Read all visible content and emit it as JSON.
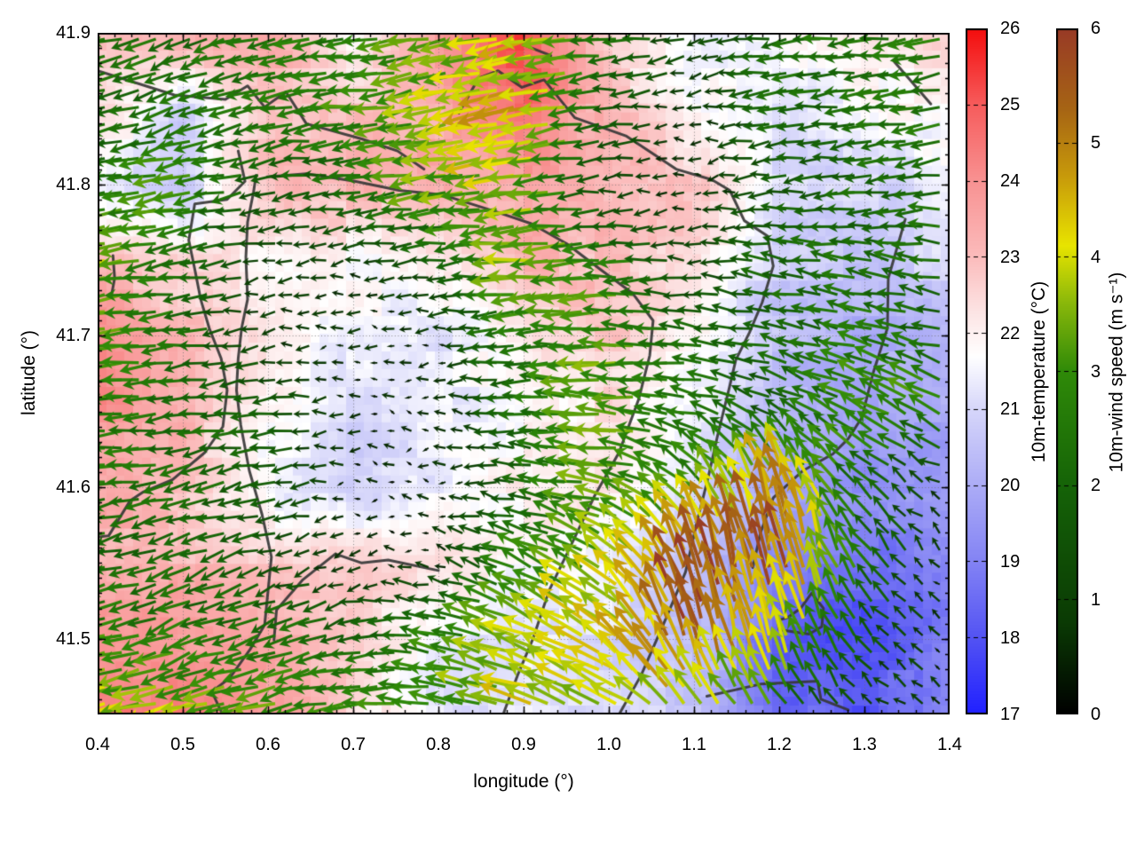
{
  "axes": {
    "xlabel": "longitude (°)",
    "ylabel": "latitude (°)",
    "xlim": [
      0.4,
      1.4
    ],
    "ylim": [
      41.45,
      41.9
    ],
    "xticks": {
      "values": [
        0.4,
        0.5,
        0.6,
        0.7,
        0.8,
        0.9,
        1.0,
        1.1,
        1.2,
        1.3,
        1.4
      ],
      "labels": [
        "0.4",
        "0.5",
        "0.6",
        "0.7",
        "0.8",
        "0.9",
        "1.0",
        "1.1",
        "1.2",
        "1.3",
        "1.4"
      ]
    },
    "yticks": {
      "values": [
        41.5,
        41.6,
        41.7,
        41.8,
        41.9
      ],
      "labels": [
        "41.5",
        "41.6",
        "41.7",
        "41.8",
        "41.9"
      ]
    },
    "grid": "dotted"
  },
  "colorbars": [
    {
      "id": "temperature",
      "label": "10m-temperature (°C)",
      "min": 17,
      "max": 26,
      "ticks": {
        "values": [
          17,
          18,
          19,
          20,
          21,
          22,
          23,
          24,
          25,
          26
        ],
        "labels": [
          "17",
          "18",
          "19",
          "20",
          "21",
          "22",
          "23",
          "24",
          "25",
          "26"
        ]
      },
      "stops": [
        [
          17,
          "#2020ff"
        ],
        [
          18,
          "#5353f3"
        ],
        [
          19,
          "#8383f4"
        ],
        [
          20,
          "#acacf6"
        ],
        [
          21,
          "#d6d6fa"
        ],
        [
          21.7,
          "#ffffff"
        ],
        [
          22.3,
          "#fce3e3"
        ],
        [
          23,
          "#fbbcbc"
        ],
        [
          24,
          "#f89292"
        ],
        [
          25,
          "#f65c5c"
        ],
        [
          26,
          "#f40d0d"
        ]
      ]
    },
    {
      "id": "wind",
      "label": "10m-wind speed (m s⁻¹)",
      "min": 0,
      "max": 6,
      "ticks": {
        "values": [
          0,
          1,
          2,
          3,
          4,
          5,
          6
        ],
        "labels": [
          "0",
          "1",
          "2",
          "3",
          "4",
          "5",
          "6"
        ]
      },
      "stops": [
        [
          0,
          "#000000"
        ],
        [
          0.8,
          "#0a3a04"
        ],
        [
          2,
          "#156307"
        ],
        [
          3,
          "#2f8a08"
        ],
        [
          3.6,
          "#8ab80a"
        ],
        [
          4.1,
          "#e8e400"
        ],
        [
          4.7,
          "#c89b0a"
        ],
        [
          5.3,
          "#a66414"
        ],
        [
          6,
          "#983a26"
        ]
      ]
    }
  ],
  "chart_data": {
    "type": "heatmap",
    "title": "",
    "xlabel": "longitude (°)",
    "ylabel": "latitude (°)",
    "x_range": [
      0.4,
      1.4
    ],
    "y_range": [
      41.45,
      41.9
    ],
    "fields": "10m temperature (shaded, °C) with 10m wind vectors colored by speed (m s⁻¹) and map boundary contours",
    "grid_lons": [
      0.4,
      0.5,
      0.6,
      0.7,
      0.8,
      0.9,
      1.0,
      1.1,
      1.2,
      1.3,
      1.4
    ],
    "grid_lats": [
      41.9,
      41.85,
      41.8,
      41.75,
      41.7,
      41.65,
      41.6,
      41.55,
      41.5,
      41.45
    ],
    "temperature_c": [
      [
        23.2,
        23.3,
        23.5,
        21.5,
        23.8,
        25.5,
        22.3,
        21.5,
        21.6,
        22.2,
        22.4
      ],
      [
        22.5,
        21.0,
        23.2,
        23.0,
        23.5,
        24.8,
        23.0,
        21.8,
        21.2,
        21.6,
        22.0
      ],
      [
        21.5,
        20.8,
        23.0,
        23.2,
        23.3,
        23.5,
        23.2,
        22.8,
        21.0,
        20.9,
        21.2
      ],
      [
        23.0,
        22.5,
        22.0,
        21.8,
        22.0,
        23.3,
        23.0,
        22.5,
        20.8,
        20.6,
        20.9
      ],
      [
        24.2,
        23.0,
        22.3,
        21.5,
        21.3,
        22.0,
        22.8,
        22.0,
        20.5,
        20.0,
        20.3
      ],
      [
        24.0,
        23.2,
        21.8,
        21.0,
        21.3,
        21.8,
        22.3,
        21.5,
        20.3,
        19.8,
        20.0
      ],
      [
        23.3,
        23.0,
        21.5,
        20.8,
        21.5,
        22.0,
        22.3,
        21.0,
        19.8,
        19.3,
        19.5
      ],
      [
        23.5,
        23.2,
        22.8,
        22.5,
        22.3,
        21.8,
        21.5,
        20.5,
        19.0,
        18.5,
        19.2
      ],
      [
        24.2,
        23.8,
        23.5,
        22.8,
        21.5,
        21.3,
        21.0,
        20.5,
        18.3,
        17.8,
        19.0
      ],
      [
        24.5,
        24.5,
        23.8,
        22.5,
        21.3,
        21.2,
        21.0,
        20.8,
        18.5,
        18.0,
        19.3
      ]
    ],
    "wind_u_ms": [
      [
        -2.5,
        -2.0,
        -2.5,
        -2.5,
        -3.0,
        -4.0,
        -2.5,
        -1.0,
        -2.0,
        -2.5,
        -2.5
      ],
      [
        -2.0,
        -2.0,
        -2.2,
        -2.8,
        -3.5,
        -4.5,
        -2.0,
        -0.5,
        -2.0,
        -2.2,
        -2.5
      ],
      [
        -2.2,
        -3.2,
        -1.5,
        -2.0,
        -3.2,
        -3.8,
        -1.0,
        -0.5,
        -1.5,
        -2.0,
        -2.2
      ],
      [
        -3.6,
        -2.2,
        -1.0,
        -0.8,
        -1.5,
        -3.5,
        -3.0,
        -1.0,
        -2.0,
        -2.2,
        -2.0
      ],
      [
        -3.0,
        -2.5,
        -0.8,
        -0.5,
        -0.5,
        -2.5,
        -3.2,
        -2.0,
        -2.0,
        -2.3,
        -2.0
      ],
      [
        -2.8,
        -2.2,
        -2.0,
        -0.5,
        -0.4,
        -2.0,
        -3.5,
        -2.5,
        -1.5,
        -2.8,
        -2.4
      ],
      [
        -2.5,
        -2.0,
        -1.8,
        -0.4,
        -0.4,
        -1.8,
        -3.2,
        -2.0,
        -1.5,
        -1.8,
        -0.5
      ],
      [
        -2.2,
        -2.0,
        -1.5,
        -0.5,
        -0.5,
        -2.5,
        -3.0,
        -2.0,
        -1.0,
        -1.5,
        -0.4
      ],
      [
        -2.8,
        -2.5,
        -2.5,
        -2.0,
        -2.5,
        -3.5,
        -3.5,
        -1.5,
        -1.0,
        -1.2,
        -0.4
      ],
      [
        -3.8,
        -3.5,
        -3.2,
        -2.8,
        -3.0,
        -3.8,
        -3.5,
        -2.5,
        -1.5,
        -0.8,
        -0.5
      ]
    ],
    "wind_v_ms": [
      [
        -0.5,
        -1.0,
        -0.5,
        -0.5,
        -0.5,
        -1.0,
        -0.3,
        -0.3,
        -0.3,
        -0.3,
        -0.5
      ],
      [
        -0.5,
        -0.8,
        -0.5,
        -0.3,
        -0.8,
        -1.0,
        -0.2,
        -0.1,
        -0.2,
        -0.2,
        -0.3
      ],
      [
        -0.3,
        -0.7,
        -0.3,
        -0.3,
        -0.5,
        -0.5,
        -0.1,
        0.0,
        -0.2,
        -0.3,
        -0.3
      ],
      [
        -0.6,
        -0.3,
        -0.2,
        -0.1,
        -0.2,
        -0.3,
        -0.2,
        0.0,
        0.3,
        0.3,
        0.3
      ],
      [
        -0.5,
        -0.3,
        -0.1,
        0.0,
        0.0,
        -0.2,
        0.0,
        0.3,
        0.5,
        0.6,
        0.5
      ],
      [
        -0.3,
        -0.3,
        -0.2,
        0.0,
        0.0,
        0.0,
        0.3,
        0.5,
        0.8,
        1.6,
        1.2
      ],
      [
        -0.3,
        -0.5,
        -0.3,
        0.0,
        0.0,
        0.2,
        0.5,
        2.0,
        4.5,
        1.5,
        0.3
      ],
      [
        -0.5,
        -0.8,
        -0.5,
        -0.2,
        0.2,
        1.0,
        2.0,
        5.0,
        5.5,
        2.0,
        0.3
      ],
      [
        -0.8,
        -1.0,
        -0.8,
        -0.5,
        0.5,
        1.5,
        2.5,
        5.5,
        4.0,
        1.2,
        0.4
      ],
      [
        -0.8,
        -1.0,
        -0.8,
        -0.5,
        0.5,
        1.0,
        1.5,
        3.0,
        2.0,
        0.5,
        0.5
      ]
    ],
    "boundaries": [
      [
        [
          0.4,
          41.875
        ],
        [
          0.49,
          41.859
        ],
        [
          0.55,
          41.856
        ],
        [
          0.576,
          41.865
        ],
        [
          0.596,
          41.851
        ],
        [
          0.621,
          41.861
        ],
        [
          0.645,
          41.84
        ],
        [
          0.71,
          41.83
        ],
        [
          0.752,
          41.822
        ],
        [
          0.783,
          41.81
        ]
      ],
      [
        [
          0.824,
          41.847
        ],
        [
          0.847,
          41.87
        ],
        [
          0.87,
          41.875
        ],
        [
          0.898,
          41.864
        ],
        [
          0.924,
          41.869
        ],
        [
          0.96,
          41.844
        ],
        [
          1.02,
          41.832
        ],
        [
          1.079,
          41.81
        ],
        [
          1.121,
          41.803
        ],
        [
          1.142,
          41.796
        ],
        [
          1.159,
          41.776
        ],
        [
          1.186,
          41.766
        ],
        [
          1.193,
          41.746
        ],
        [
          1.18,
          41.722
        ],
        [
          1.165,
          41.702
        ],
        [
          1.149,
          41.684
        ],
        [
          1.142,
          41.667
        ],
        [
          1.128,
          41.635
        ],
        [
          1.116,
          41.605
        ],
        [
          1.103,
          41.576
        ],
        [
          1.09,
          41.544
        ],
        [
          1.066,
          41.512
        ],
        [
          1.038,
          41.476
        ],
        [
          1.012,
          41.45
        ]
      ],
      [
        [
          0.599,
          41.805
        ],
        [
          0.645,
          41.807
        ],
        [
          0.702,
          41.802
        ],
        [
          0.754,
          41.796
        ],
        [
          0.805,
          41.793
        ],
        [
          0.867,
          41.782
        ],
        [
          0.909,
          41.774
        ],
        [
          0.95,
          41.761
        ],
        [
          0.992,
          41.743
        ],
        [
          1.028,
          41.728
        ],
        [
          1.052,
          41.71
        ],
        [
          1.048,
          41.687
        ],
        [
          1.035,
          41.658
        ],
        [
          1.012,
          41.623
        ],
        [
          0.983,
          41.594
        ],
        [
          0.955,
          41.561
        ],
        [
          0.93,
          41.532
        ],
        [
          0.911,
          41.5
        ],
        [
          0.893,
          41.476
        ],
        [
          0.876,
          41.45
        ]
      ],
      [
        [
          0.565,
          41.822
        ],
        [
          0.573,
          41.802
        ],
        [
          0.552,
          41.79
        ],
        [
          0.514,
          41.787
        ],
        [
          0.507,
          41.763
        ],
        [
          0.514,
          41.744
        ],
        [
          0.521,
          41.724
        ],
        [
          0.531,
          41.705
        ],
        [
          0.545,
          41.685
        ],
        [
          0.552,
          41.664
        ],
        [
          0.547,
          41.64
        ],
        [
          0.526,
          41.623
        ],
        [
          0.488,
          41.605
        ],
        [
          0.454,
          41.597
        ],
        [
          0.438,
          41.591
        ],
        [
          0.413,
          41.568
        ],
        [
          0.4,
          41.567
        ]
      ],
      [
        [
          0.586,
          41.806
        ],
        [
          0.583,
          41.795
        ],
        [
          0.576,
          41.775
        ],
        [
          0.574,
          41.752
        ],
        [
          0.576,
          41.724
        ],
        [
          0.569,
          41.705
        ],
        [
          0.565,
          41.685
        ],
        [
          0.563,
          41.664
        ],
        [
          0.568,
          41.641
        ],
        [
          0.578,
          41.611
        ],
        [
          0.593,
          41.582
        ],
        [
          0.604,
          41.554
        ],
        [
          0.596,
          41.509
        ],
        [
          0.579,
          41.493
        ],
        [
          0.555,
          41.474
        ],
        [
          0.534,
          41.465
        ],
        [
          0.545,
          41.452
        ]
      ],
      [
        [
          0.8,
          41.545
        ],
        [
          0.741,
          41.552
        ],
        [
          0.71,
          41.55
        ],
        [
          0.679,
          41.556
        ],
        [
          0.641,
          41.539
        ],
        [
          0.61,
          41.519
        ],
        [
          0.607,
          41.499
        ]
      ],
      [
        [
          1.335,
          41.881
        ],
        [
          1.358,
          41.866
        ],
        [
          1.378,
          41.853
        ]
      ],
      [
        [
          1.348,
          41.777
        ],
        [
          1.328,
          41.738
        ],
        [
          1.327,
          41.705
        ],
        [
          1.31,
          41.675
        ],
        [
          1.297,
          41.646
        ],
        [
          1.281,
          41.632
        ],
        [
          1.263,
          41.622
        ],
        [
          1.228,
          41.611
        ],
        [
          1.193,
          41.593
        ],
        [
          1.178,
          41.57
        ],
        [
          1.169,
          41.547
        ]
      ],
      [
        [
          1.238,
          41.53
        ],
        [
          1.252,
          41.52
        ],
        [
          1.25,
          41.508
        ],
        [
          1.235,
          41.503
        ],
        [
          1.2,
          41.506
        ],
        [
          1.198,
          41.512
        ],
        [
          1.21,
          41.514
        ],
        [
          1.225,
          41.52
        ],
        [
          1.238,
          41.53
        ]
      ],
      [
        [
          1.115,
          41.462
        ],
        [
          1.178,
          41.47
        ],
        [
          1.245,
          41.472
        ],
        [
          1.249,
          41.46
        ],
        [
          1.281,
          41.453
        ]
      ],
      [
        [
          0.418,
          41.753
        ],
        [
          0.42,
          41.738
        ],
        [
          0.416,
          41.726
        ]
      ],
      [
        [
          0.9,
          41.892
        ],
        [
          0.932,
          41.885
        ]
      ]
    ]
  }
}
